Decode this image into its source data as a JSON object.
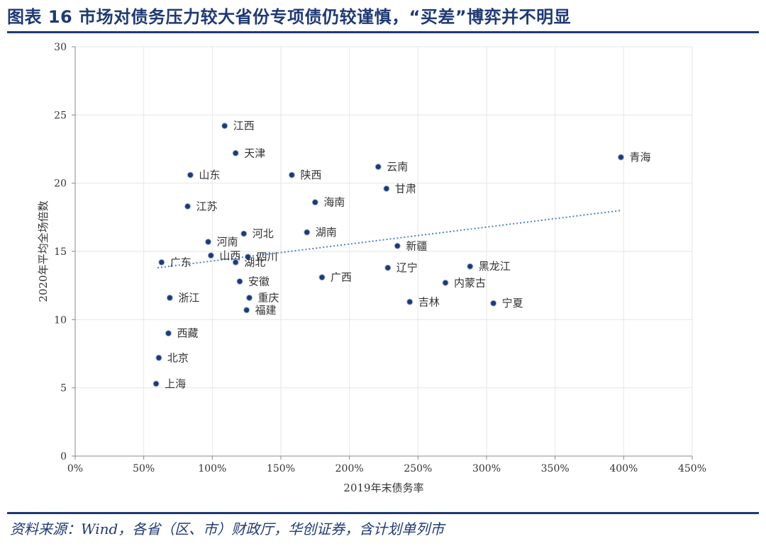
{
  "header": {
    "title": "图表 16   市场对债务压力较大省份专项债仍较谨慎，“买差”博弈并不明显"
  },
  "footer": {
    "source": "资料来源：Wind，各省（区、市）财政厅，华创证券，含计划单列市"
  },
  "colors": {
    "title": "#1f3a73",
    "point": "#1f3a73",
    "trendline": "#4a7fd4",
    "grid": "#e6e6e6"
  },
  "chart_data": {
    "type": "scatter",
    "xlabel": "2019年末债务率",
    "ylabel": "2020年平均全场倍数",
    "xlim": [
      0,
      450
    ],
    "ylim": [
      0,
      30
    ],
    "xticks": [
      "0%",
      "50%",
      "100%",
      "150%",
      "200%",
      "250%",
      "300%",
      "350%",
      "400%",
      "450%"
    ],
    "yticks": [
      "0",
      "5",
      "10",
      "15",
      "20",
      "25",
      "30"
    ],
    "grid": "vertical and horizontal",
    "trendline": {
      "type": "linear",
      "from": [
        60,
        13.8
      ],
      "to": [
        398,
        18.0
      ]
    },
    "points": [
      {
        "label": "江西",
        "x": 109,
        "y": 24.2
      },
      {
        "label": "天津",
        "x": 117,
        "y": 22.2
      },
      {
        "label": "山东",
        "x": 84,
        "y": 20.6
      },
      {
        "label": "陕西",
        "x": 158,
        "y": 20.6
      },
      {
        "label": "云南",
        "x": 221,
        "y": 21.2
      },
      {
        "label": "青海",
        "x": 398,
        "y": 21.9
      },
      {
        "label": "甘肃",
        "x": 227,
        "y": 19.6
      },
      {
        "label": "海南",
        "x": 175,
        "y": 18.6
      },
      {
        "label": "江苏",
        "x": 82,
        "y": 18.3
      },
      {
        "label": "河北",
        "x": 123,
        "y": 16.3
      },
      {
        "label": "湖南",
        "x": 169,
        "y": 16.4
      },
      {
        "label": "河南",
        "x": 97,
        "y": 15.7
      },
      {
        "label": "新疆",
        "x": 235,
        "y": 15.4
      },
      {
        "label": "山西",
        "x": 99,
        "y": 14.7
      },
      {
        "label": "四川",
        "x": 126,
        "y": 14.6
      },
      {
        "label": "广东",
        "x": 63,
        "y": 14.2
      },
      {
        "label": "湖北",
        "x": 117,
        "y": 14.2
      },
      {
        "label": "黑龙江",
        "x": 288,
        "y": 13.9
      },
      {
        "label": "辽宁",
        "x": 228,
        "y": 13.8
      },
      {
        "label": "广西",
        "x": 180,
        "y": 13.1
      },
      {
        "label": "安徽",
        "x": 120,
        "y": 12.8
      },
      {
        "label": "内蒙古",
        "x": 270,
        "y": 12.7
      },
      {
        "label": "浙江",
        "x": 69,
        "y": 11.6
      },
      {
        "label": "重庆",
        "x": 127,
        "y": 11.6
      },
      {
        "label": "吉林",
        "x": 244,
        "y": 11.3
      },
      {
        "label": "宁夏",
        "x": 305,
        "y": 11.2
      },
      {
        "label": "福建",
        "x": 125,
        "y": 10.7
      },
      {
        "label": "西藏",
        "x": 68,
        "y": 9.0
      },
      {
        "label": "北京",
        "x": 61,
        "y": 7.2
      },
      {
        "label": "上海",
        "x": 59,
        "y": 5.3
      }
    ]
  }
}
